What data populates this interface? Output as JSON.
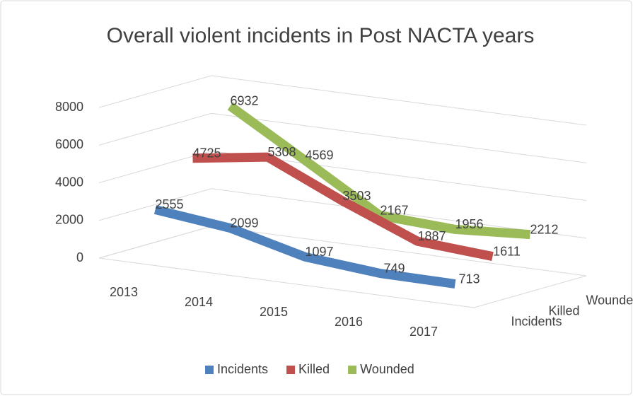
{
  "chart_data": {
    "type": "line3d",
    "title": "Overall violent incidents in Post NACTA years",
    "categories": [
      "2013",
      "2014",
      "2015",
      "2016",
      "2017"
    ],
    "series": [
      {
        "name": "Incidents",
        "color": "#4f81bd",
        "values": [
          2555,
          2099,
          1097,
          749,
          713
        ]
      },
      {
        "name": "Killed",
        "color": "#c0504d",
        "values": [
          4725,
          5308,
          3503,
          1887,
          1611
        ]
      },
      {
        "name": "Wounded",
        "color": "#9bbb59",
        "values": [
          6932,
          4569,
          2167,
          1956,
          2212
        ]
      }
    ],
    "ylim": [
      0,
      8000
    ],
    "yticks": [
      0,
      2000,
      4000,
      6000,
      8000
    ],
    "grid": true,
    "legend": "bottom"
  }
}
